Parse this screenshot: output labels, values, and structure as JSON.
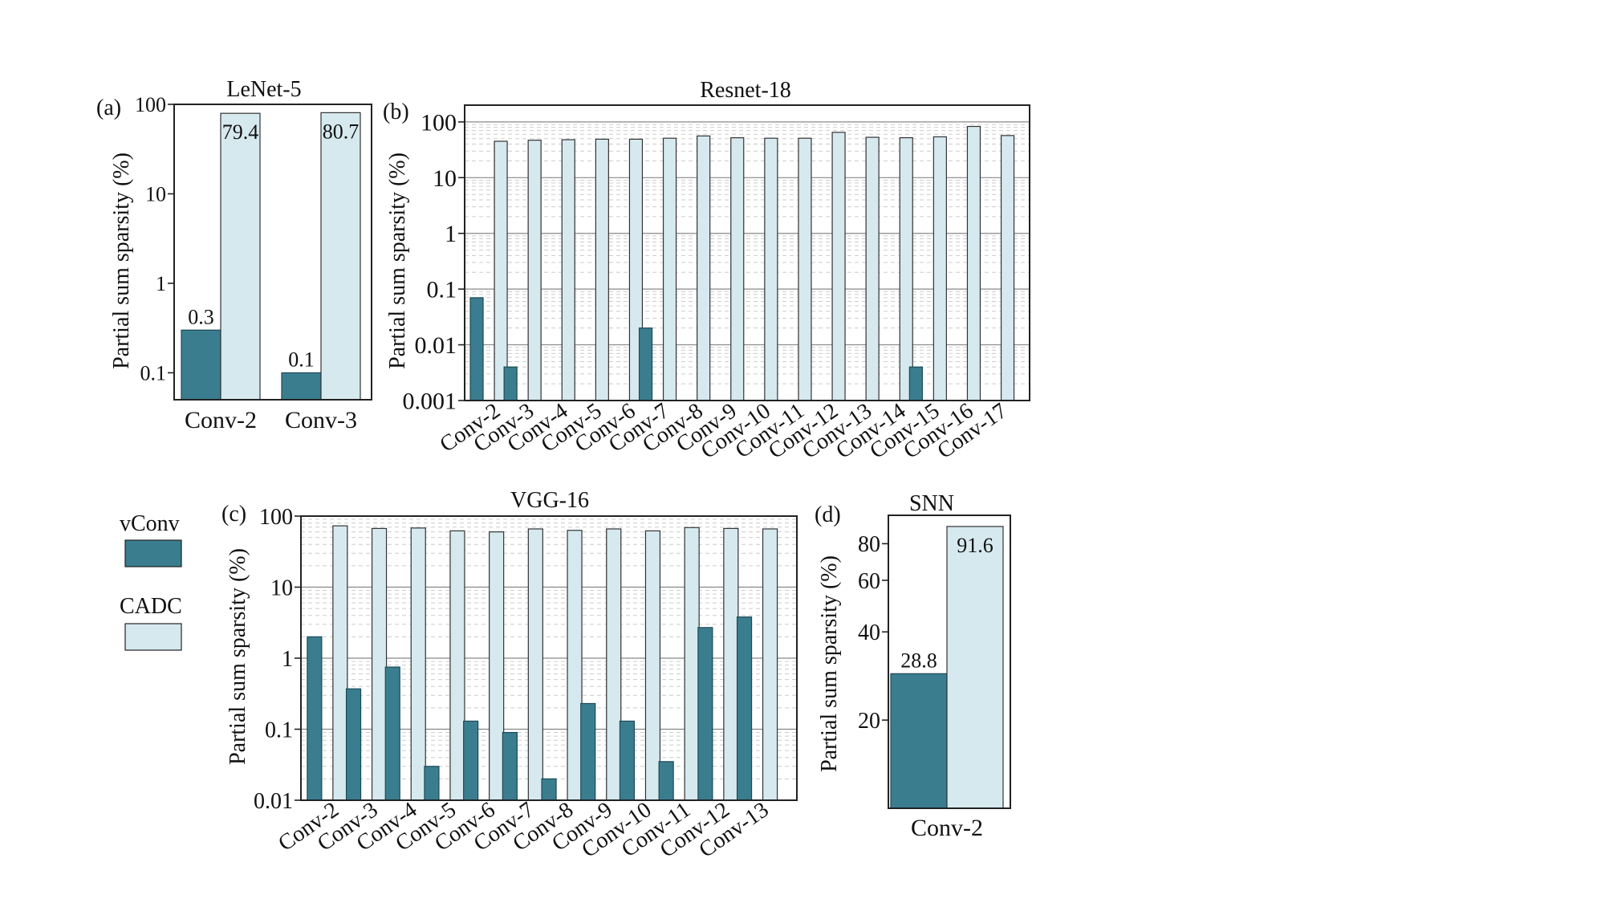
{
  "colors": {
    "vconv": "#3a7d8f",
    "cadc": "#d6e9ef"
  },
  "legend": {
    "items": [
      {
        "name": "vConv",
        "key": "vconv"
      },
      {
        "name": "CADC",
        "key": "cadc"
      }
    ]
  },
  "chart_data": [
    {
      "id": "a",
      "panel_label": "(a)",
      "type": "bar",
      "title": "LeNet-5",
      "ylabel": "Partial sum sparsity (%)",
      "yscale": "log",
      "ylim": [
        0.05,
        100
      ],
      "yticks": [
        0.1,
        1,
        10,
        100
      ],
      "ytick_labels": [
        "0.1",
        "1",
        "10",
        "100"
      ],
      "categories": [
        "Conv-2",
        "Conv-3"
      ],
      "series": [
        {
          "name": "vConv",
          "values": [
            0.3,
            0.1
          ]
        },
        {
          "name": "CADC",
          "values": [
            79.4,
            80.7
          ]
        }
      ],
      "data_labels": {
        "vConv": [
          "0.3",
          "0.1"
        ],
        "CADC": [
          "79.4",
          "80.7"
        ]
      }
    },
    {
      "id": "b",
      "panel_label": "(b)",
      "type": "bar",
      "title": "Resnet-18",
      "ylabel": "Partial sum sparsity (%)",
      "yscale": "log",
      "ylim": [
        0.001,
        200
      ],
      "yticks": [
        0.001,
        0.01,
        0.1,
        1,
        10,
        100
      ],
      "ytick_labels": [
        "0.001",
        "0.01",
        "0.1",
        "1",
        "10",
        "100"
      ],
      "categories": [
        "Conv-2",
        "Conv-3",
        "Conv-4",
        "Conv-5",
        "Conv-6",
        "Conv-7",
        "Conv-8",
        "Conv-9",
        "Conv-10",
        "Conv-11",
        "Conv-12",
        "Conv-13",
        "Conv-14",
        "Conv-15",
        "Conv-16",
        "Conv-17"
      ],
      "series": [
        {
          "name": "vConv",
          "values": [
            0.07,
            0.004,
            0,
            0,
            0,
            0.02,
            0,
            0,
            0,
            0,
            0,
            0,
            0,
            0.004,
            0,
            0
          ]
        },
        {
          "name": "CADC",
          "values": [
            45,
            47,
            48,
            49,
            49,
            51,
            56,
            52,
            51,
            51,
            65,
            53,
            52,
            54,
            83,
            57
          ]
        }
      ]
    },
    {
      "id": "c",
      "panel_label": "(c)",
      "type": "bar",
      "title": "VGG-16",
      "ylabel": "Partial sum sparsity (%)",
      "yscale": "log",
      "ylim": [
        0.01,
        100
      ],
      "yticks": [
        0.01,
        0.1,
        1,
        10,
        100
      ],
      "ytick_labels": [
        "0.01",
        "0.1",
        "1",
        "10",
        "100"
      ],
      "categories": [
        "Conv-2",
        "Conv-3",
        "Conv-4",
        "Conv-5",
        "Conv-6",
        "Conv-7",
        "Conv-8",
        "Conv-9",
        "Conv-10",
        "Conv-11",
        "Conv-12",
        "Conv-13"
      ],
      "series": [
        {
          "name": "vConv",
          "values": [
            2.0,
            0.37,
            0.75,
            0.03,
            0.13,
            0.09,
            0.02,
            0.23,
            0.13,
            0.035,
            2.7,
            3.8
          ]
        },
        {
          "name": "CADC",
          "values": [
            73,
            67,
            68,
            62,
            60,
            66,
            63,
            66,
            62,
            69,
            67,
            66
          ]
        }
      ]
    },
    {
      "id": "d",
      "panel_label": "(d)",
      "type": "bar",
      "title": "SNN",
      "ylabel": "Partial sum sparsity (%)",
      "yscale": "log",
      "ylim": [
        10,
        100
      ],
      "yticks": [
        20,
        40,
        60,
        80
      ],
      "ytick_labels": [
        "20",
        "40",
        "60",
        "80"
      ],
      "categories": [
        "Conv-2"
      ],
      "series": [
        {
          "name": "vConv",
          "values": [
            28.8
          ]
        },
        {
          "name": "CADC",
          "values": [
            91.6
          ]
        }
      ],
      "data_labels": {
        "vConv": [
          "28.8"
        ],
        "CADC": [
          "91.6"
        ]
      }
    }
  ]
}
